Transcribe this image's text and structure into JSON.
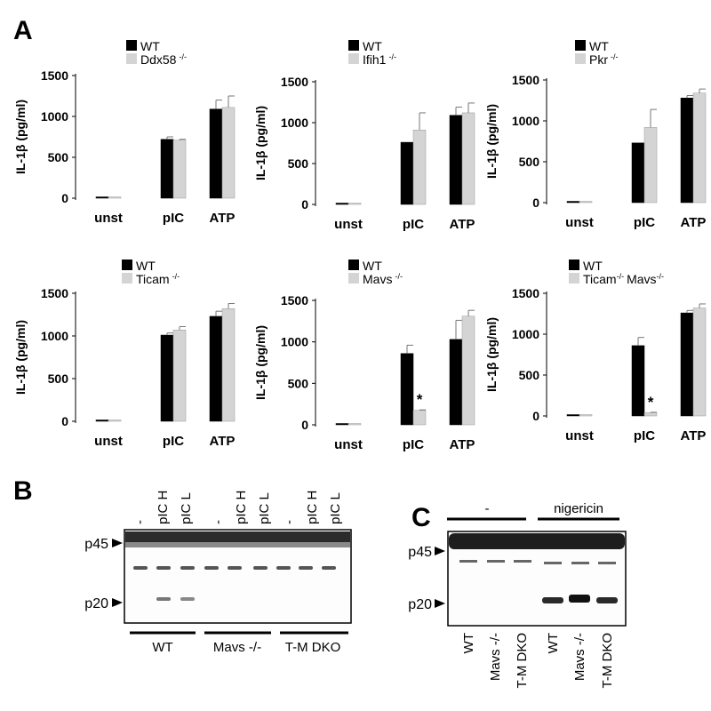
{
  "panel_labels": {
    "A": "A",
    "B": "B",
    "C": "C"
  },
  "axis": {
    "ylabel": "IL-1β (pg/ml)",
    "yticks": [
      "0",
      "500",
      "1000",
      "1500"
    ],
    "categories": [
      "unst",
      "pIC",
      "ATP"
    ]
  },
  "legend_wt": "WT",
  "colors": {
    "wt": "#000000",
    "ko": "#d4d4d4"
  },
  "chart_data": [
    {
      "type": "bar",
      "categories": [
        "unst",
        "pIC",
        "ATP"
      ],
      "ylabel": "IL-1β (pg/ml)",
      "ylim": [
        0,
        1500
      ],
      "series": [
        {
          "name": "WT",
          "values": [
            5,
            720,
            1090
          ],
          "errors": [
            0,
            30,
            110
          ]
        },
        {
          "name": "Ddx58",
          "sup": "-/-",
          "values": [
            5,
            710,
            1110
          ],
          "errors": [
            0,
            10,
            140
          ]
        }
      ]
    },
    {
      "type": "bar",
      "categories": [
        "unst",
        "pIC",
        "ATP"
      ],
      "ylabel": "IL-1β (pg/ml)",
      "ylim": [
        0,
        1500
      ],
      "series": [
        {
          "name": "WT",
          "values": [
            15,
            760,
            1090
          ],
          "errors": [
            0,
            0,
            100
          ]
        },
        {
          "name": "Ifih1",
          "sup": "-/-",
          "values": [
            5,
            910,
            1120
          ],
          "errors": [
            0,
            210,
            120
          ]
        }
      ]
    },
    {
      "type": "bar",
      "categories": [
        "unst",
        "pIC",
        "ATP"
      ],
      "ylabel": "IL-1β (pg/ml)",
      "ylim": [
        0,
        1500
      ],
      "series": [
        {
          "name": "WT",
          "values": [
            5,
            730,
            1280
          ],
          "errors": [
            0,
            0,
            30
          ]
        },
        {
          "name": "Pkr",
          "sup": "-/-",
          "values": [
            5,
            920,
            1340
          ],
          "errors": [
            0,
            220,
            50
          ]
        }
      ]
    },
    {
      "type": "bar",
      "categories": [
        "unst",
        "pIC",
        "ATP"
      ],
      "ylabel": "IL-1β (pg/ml)",
      "ylim": [
        0,
        1500
      ],
      "series": [
        {
          "name": "WT",
          "values": [
            5,
            1010,
            1230
          ],
          "errors": [
            0,
            25,
            60
          ]
        },
        {
          "name": "Ticam",
          "sup": "-/-",
          "values": [
            5,
            1070,
            1320
          ],
          "errors": [
            0,
            40,
            60
          ]
        }
      ]
    },
    {
      "type": "bar",
      "categories": [
        "unst",
        "pIC",
        "ATP"
      ],
      "ylabel": "IL-1β (pg/ml)",
      "ylim": [
        0,
        1500
      ],
      "series": [
        {
          "name": "WT",
          "values": [
            5,
            860,
            1030
          ],
          "errors": [
            0,
            100,
            230
          ]
        },
        {
          "name": "Mavs",
          "sup": "-/-",
          "values": [
            5,
            175,
            1310
          ],
          "errors": [
            0,
            5,
            70
          ]
        }
      ],
      "annotations": [
        {
          "text": "*",
          "category": "pIC"
        }
      ]
    },
    {
      "type": "bar",
      "categories": [
        "unst",
        "pIC",
        "ATP"
      ],
      "ylabel": "IL-1β (pg/ml)",
      "ylim": [
        0,
        1500
      ],
      "series": [
        {
          "name": "WT",
          "values": [
            5,
            860,
            1260
          ],
          "errors": [
            0,
            100,
            30
          ]
        },
        {
          "name": "Ticam Mavs",
          "values": [
            5,
            40,
            1320
          ],
          "errors": [
            0,
            5,
            50
          ]
        }
      ],
      "annotations": [
        {
          "text": "*",
          "category": "pIC"
        }
      ]
    }
  ],
  "legend6": {
    "part1": "Ticam",
    "sup1": "-/-",
    "part2": "Mavs",
    "sup2": "-/-"
  },
  "blotB": {
    "lanes": [
      "-",
      "pIC H",
      "pIC L",
      "-",
      "pIC H",
      "pIC L",
      "-",
      "pIC H",
      "pIC L"
    ],
    "markers": [
      "p45",
      "p20"
    ],
    "groups": [
      "WT",
      "Mavs -/-",
      "T-M DKO"
    ]
  },
  "blotC": {
    "treatments": [
      "-",
      "nigericin"
    ],
    "markers": [
      "p45",
      "p20"
    ],
    "lanes": [
      "WT",
      "Mavs -/-",
      "T-M DKO",
      "WT",
      "Mavs -/-",
      "T-M DKO"
    ]
  }
}
